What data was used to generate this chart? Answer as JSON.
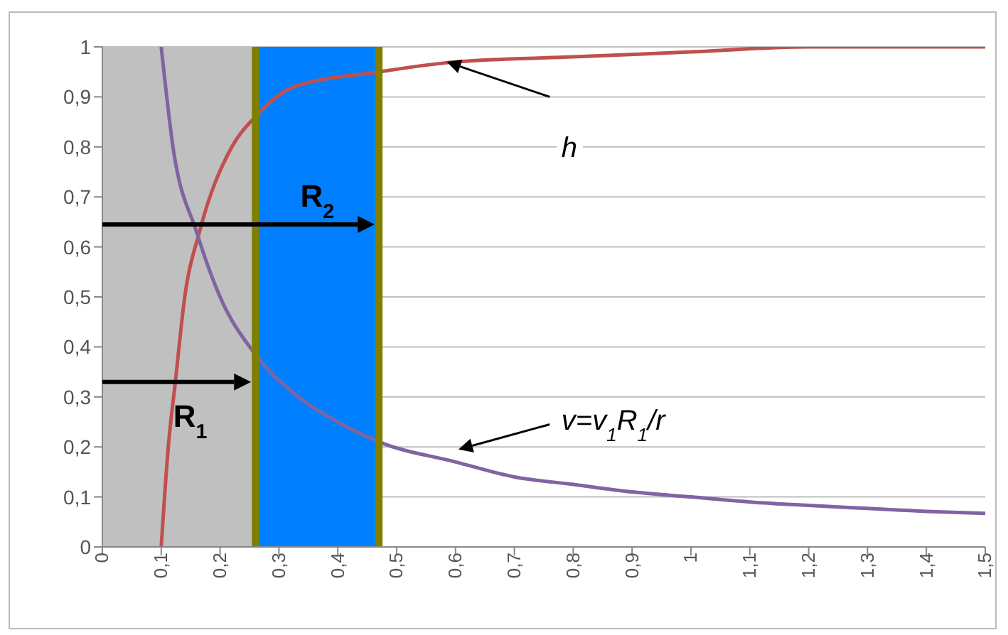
{
  "chart_data": {
    "type": "line",
    "series": [
      {
        "name": "h",
        "color": "#c0504d",
        "x": [
          0.1,
          0.112,
          0.124,
          0.14,
          0.165,
          0.22,
          0.26,
          0.325,
          0.47,
          0.6,
          0.8,
          1.0,
          1.2,
          1.5
        ],
        "values": [
          0,
          0.2,
          0.33,
          0.5,
          0.63,
          0.8,
          0.86,
          0.92,
          0.95,
          0.97,
          0.98,
          0.99,
          1.0,
          1.0
        ]
      },
      {
        "name": "v=v$_{1}$R$_{1}$/r",
        "color": "#8064a2",
        "x": [
          0.1,
          0.12,
          0.16,
          0.2,
          0.26,
          0.333,
          0.4,
          0.47,
          0.6,
          0.7,
          0.8,
          0.9,
          1.0,
          1.1,
          1.2,
          1.3,
          1.4,
          1.5
        ],
        "values": [
          1,
          0.8,
          0.63,
          0.5,
          0.385,
          0.3,
          0.25,
          0.21,
          0.17,
          0.14,
          0.125,
          0.11,
          0.1,
          0.09,
          0.083,
          0.077,
          0.071,
          0.067
        ]
      }
    ],
    "xlim": [
      0,
      1.5
    ],
    "xticks": [
      0,
      {
        "value": 0.1,
        "label": "0,1"
      },
      {
        "value": 0.2,
        "label": "0,2"
      },
      {
        "value": 0.3,
        "label": "0,3"
      },
      {
        "value": 0.4,
        "label": "0,4"
      },
      {
        "value": 0.5,
        "label": "0,5"
      },
      {
        "value": 0.6,
        "label": "0,6"
      },
      {
        "value": 0.7,
        "label": "0,7"
      },
      {
        "value": 0.8,
        "label": "0,8"
      },
      {
        "value": 0.9,
        "label": "0,9"
      },
      1,
      {
        "value": 1.1,
        "label": "1,1"
      },
      {
        "value": 1.2,
        "label": "1,2"
      },
      {
        "value": 1.3,
        "label": "1,3"
      },
      {
        "value": 1.4,
        "label": "1,4"
      },
      {
        "value": 1.5,
        "label": "1,5"
      }
    ],
    "ylim": [
      0,
      1
    ],
    "yticks": [
      0,
      {
        "value": 0.1,
        "label": "0,1"
      },
      {
        "value": 0.2,
        "label": "0,2"
      },
      {
        "value": 0.3,
        "label": "0,3"
      },
      {
        "value": 0.4,
        "label": "0,4"
      },
      {
        "value": 0.5,
        "label": "0,5"
      },
      {
        "value": 0.6,
        "label": "0,6"
      },
      {
        "value": 0.7,
        "label": "0,7"
      },
      {
        "value": 0.8,
        "label": "0,8"
      },
      {
        "value": 0.9,
        "label": "0,9"
      },
      1
    ],
    "bands": [
      {
        "axis": "x",
        "from": 0,
        "to": 0.26,
        "label": "R$_{1}$",
        "color": "#c0c0c0"
      },
      {
        "axis": "x",
        "from": 0.26,
        "to": 0.47,
        "label": "R$_{2}$",
        "color": "#0080ff"
      }
    ],
    "ref_lines": [
      {
        "axis": "x",
        "value": 0.26,
        "color": "#808000"
      },
      {
        "axis": "x",
        "value": 0.47,
        "color": "#808000"
      }
    ],
    "grid": "y"
  }
}
